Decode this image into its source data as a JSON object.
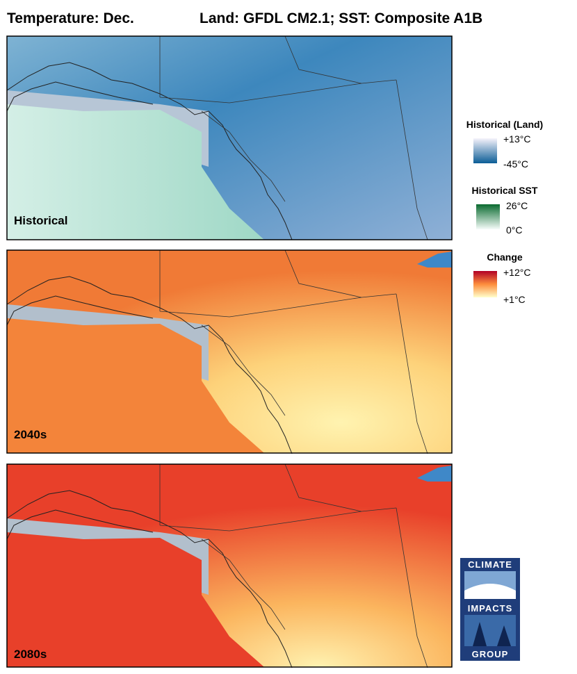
{
  "header": {
    "title": "Temperature: Dec.",
    "subtitle": "Land: GFDL CM2.1; SST: Composite A1B"
  },
  "panels": [
    {
      "label": "Historical"
    },
    {
      "label": "2040s"
    },
    {
      "label": "2080s"
    }
  ],
  "legends": [
    {
      "title": "Historical (Land)",
      "max": "+13°C",
      "min": "-45°C"
    },
    {
      "title": "Historical SST",
      "max": "26°C",
      "min": "0°C"
    },
    {
      "title": "Change",
      "max": "+12°C",
      "min": "+1°C"
    }
  ],
  "logo": {
    "top": "CLIMATE",
    "middle": "IMPACTS",
    "bottom": "GROUP"
  }
}
